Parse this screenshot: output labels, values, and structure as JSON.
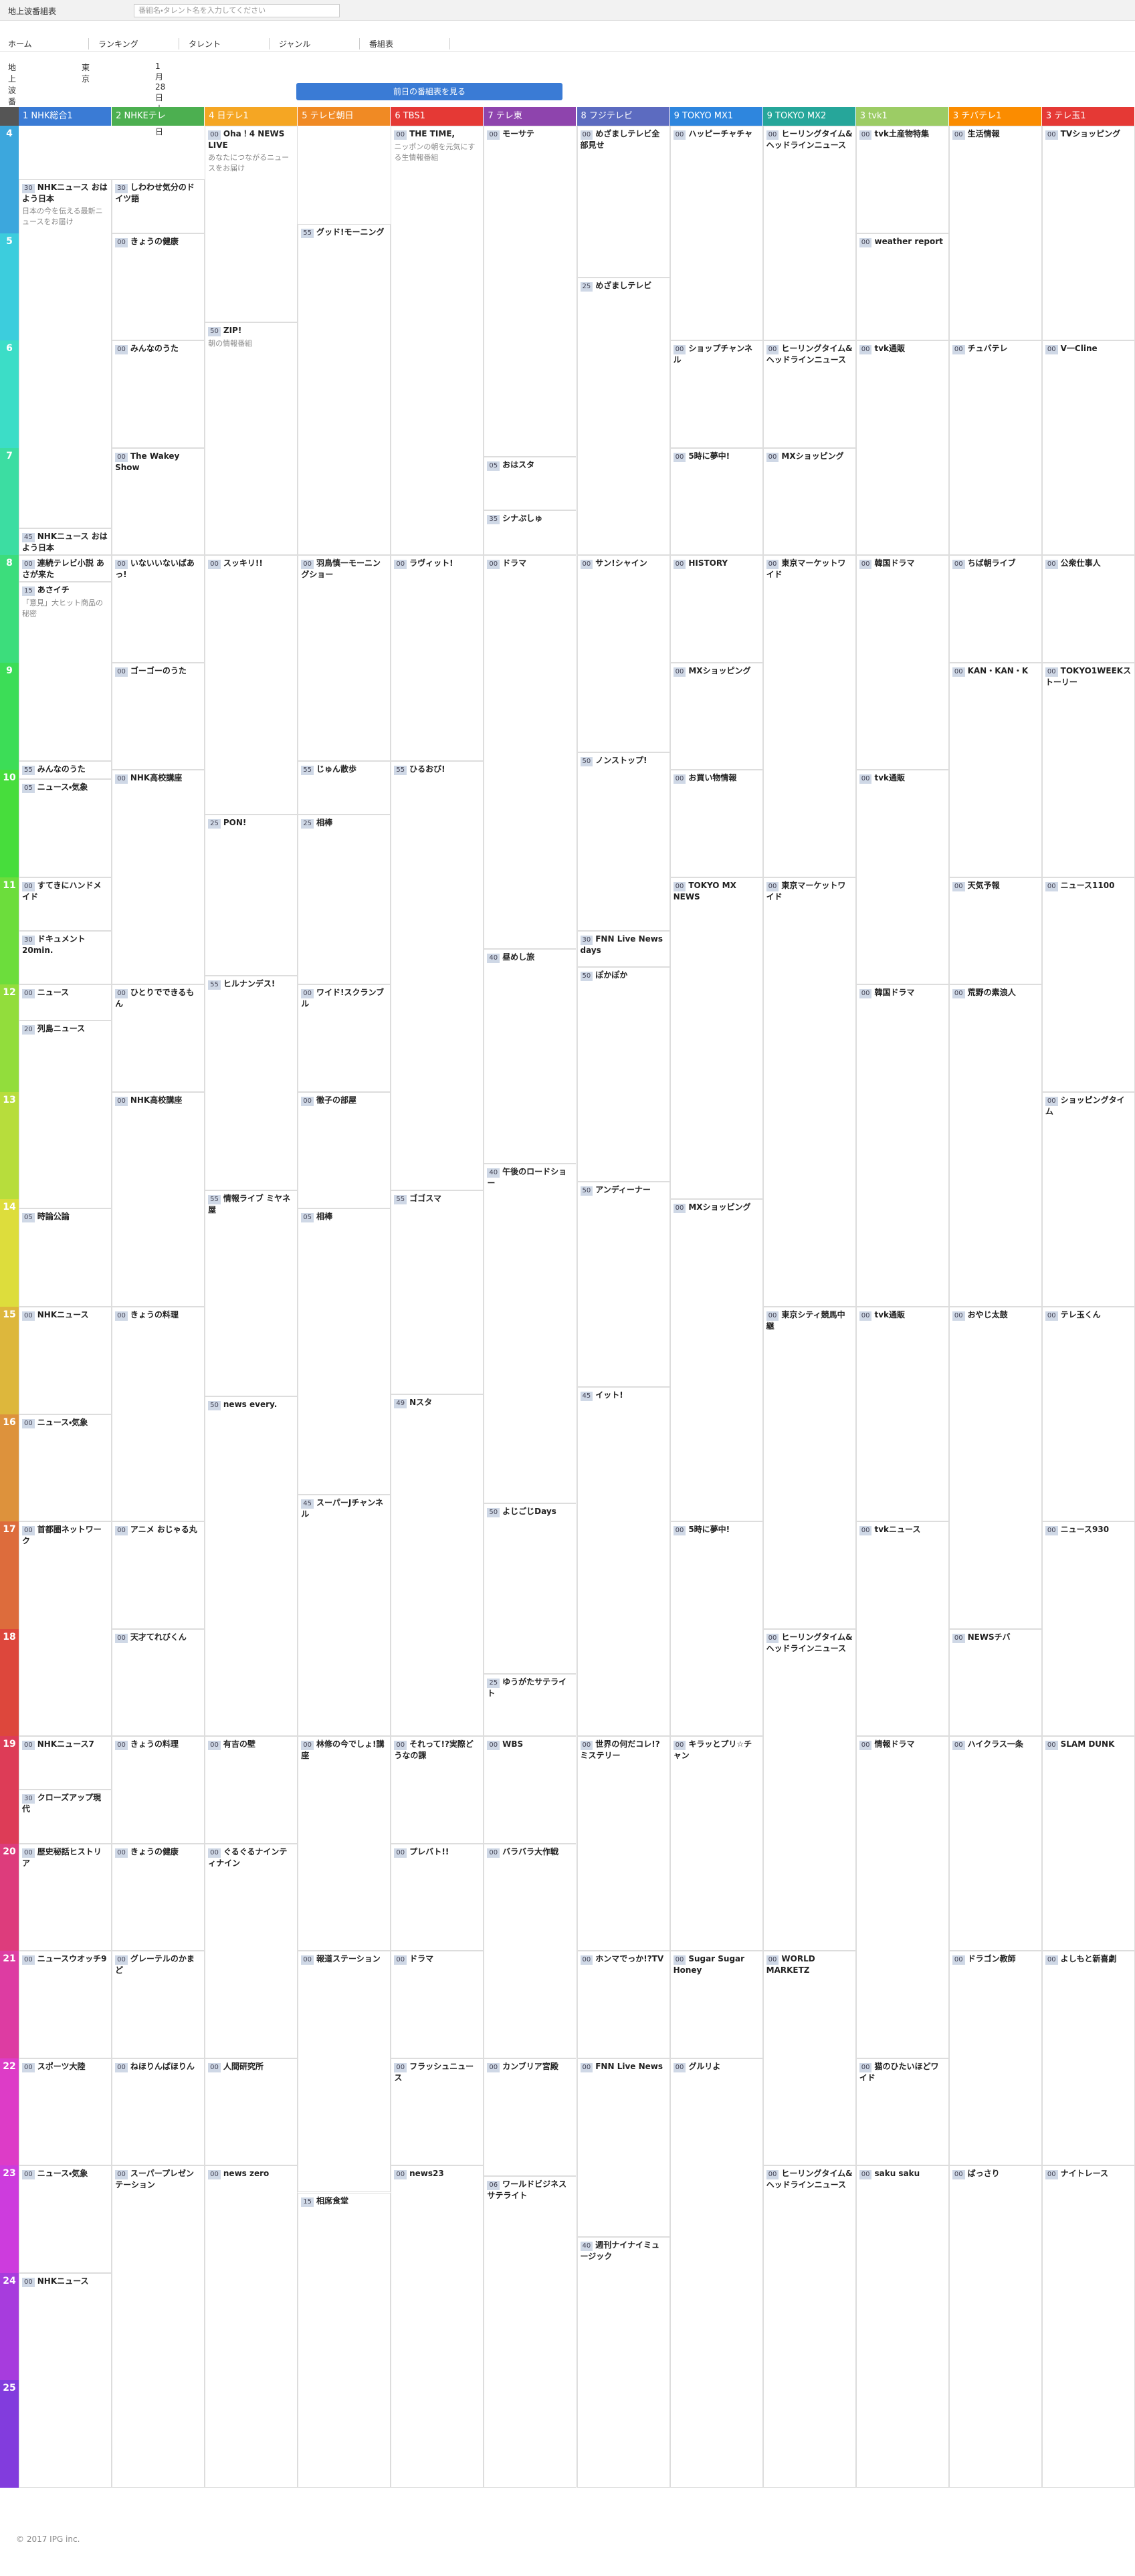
{
  "header": {
    "logo": "地上波番組表",
    "search_placeholder": "番組名・タレント名を入力してください"
  },
  "nav": [
    "ホーム",
    "ランキング",
    "タレント",
    "ジャンル",
    "番組表"
  ],
  "filters": [
    "地上波番組表",
    "東京",
    "1月28日木曜日"
  ],
  "prev_button": "前日の番組表を見る",
  "hours": [
    4,
    5,
    6,
    7,
    8,
    9,
    10,
    11,
    12,
    13,
    14,
    15,
    16,
    17,
    18,
    19,
    20,
    21,
    22,
    23,
    24,
    25
  ],
  "channels": [
    {
      "name": "1 NHK総合1",
      "color": "#3a7bd5",
      "programs": [
        {
          "hour": 4,
          "minute": "30",
          "title": "NHKニュース おはよう日本",
          "desc": "日本の今を伝える最新ニュースをお届け"
        },
        {
          "hour": 7,
          "minute": "45",
          "title": "NHKニュース おはよう日本"
        },
        {
          "hour": 8,
          "minute": "00",
          "title": "連続テレビ小説 あさが来た"
        },
        {
          "hour": 8,
          "minute": "15",
          "title": "あさイチ",
          "desc": "「意見」大ヒット商品の秘密"
        },
        {
          "hour": 9,
          "minute": "55",
          "title": "みんなのうた"
        },
        {
          "hour": 10,
          "minute": "05",
          "title": "ニュース・気象"
        },
        {
          "hour": 11,
          "minute": "00",
          "title": "すてきにハンドメイド"
        },
        {
          "hour": 11,
          "minute": "30",
          "title": "ドキュメント20min."
        },
        {
          "hour": 12,
          "minute": "00",
          "title": "ニュース"
        },
        {
          "hour": 12,
          "minute": "20",
          "title": "列島ニュース"
        },
        {
          "hour": 14,
          "minute": "05",
          "title": "時論公論"
        },
        {
          "hour": 15,
          "minute": "00",
          "title": "NHKニュース"
        },
        {
          "hour": 16,
          "minute": "00",
          "title": "ニュース・気象"
        },
        {
          "hour": 17,
          "minute": "00",
          "title": "首都圏ネットワーク"
        },
        {
          "hour": 19,
          "minute": "00",
          "title": "NHKニュース7"
        },
        {
          "hour": 19,
          "minute": "30",
          "title": "クローズアップ現代"
        },
        {
          "hour": 20,
          "minute": "00",
          "title": "歴史秘話ヒストリア"
        },
        {
          "hour": 21,
          "minute": "00",
          "title": "ニュースウオッチ9"
        },
        {
          "hour": 22,
          "minute": "00",
          "title": "スポーツ大陸"
        },
        {
          "hour": 23,
          "minute": "00",
          "title": "ニュース・気象"
        },
        {
          "hour": 24,
          "minute": "00",
          "title": "NHKニュース"
        }
      ]
    },
    {
      "name": "2 NHKEテレ",
      "color": "#4caf50",
      "programs": [
        {
          "hour": 4,
          "minute": "30",
          "title": "しわわせ気分のドイツ語"
        },
        {
          "hour": 5,
          "minute": "00",
          "title": "きょうの健康"
        },
        {
          "hour": 6,
          "minute": "00",
          "title": "みんなのうた"
        },
        {
          "hour": 7,
          "minute": "00",
          "title": "The Wakey Show"
        },
        {
          "hour": 8,
          "minute": "00",
          "title": "いないいないばあっ!"
        },
        {
          "hour": 9,
          "minute": "00",
          "title": "ゴーゴーのうた"
        },
        {
          "hour": 10,
          "minute": "00",
          "title": "NHK高校講座"
        },
        {
          "hour": 12,
          "minute": "00",
          "title": "ひとりでできるもん"
        },
        {
          "hour": 13,
          "minute": "00",
          "title": "NHK高校講座"
        },
        {
          "hour": 15,
          "minute": "00",
          "title": "きょうの料理"
        },
        {
          "hour": 17,
          "minute": "00",
          "title": "アニメ おじゃる丸"
        },
        {
          "hour": 18,
          "minute": "00",
          "title": "天才てれびくん"
        },
        {
          "hour": 19,
          "minute": "00",
          "title": "きょうの料理"
        },
        {
          "hour": 20,
          "minute": "00",
          "title": "きょうの健康"
        },
        {
          "hour": 21,
          "minute": "00",
          "title": "グレーテルのかまど"
        },
        {
          "hour": 22,
          "minute": "00",
          "title": "ねほりんぱほりん"
        },
        {
          "hour": 23,
          "minute": "00",
          "title": "スーパープレゼンテーション"
        }
      ]
    },
    {
      "name": "4 日テレ1",
      "color": "#f5a623",
      "programs": [
        {
          "hour": 4,
          "minute": "00",
          "title": "Oha！4 NEWS LIVE",
          "desc": "あなたにつながるニュースをお届け"
        },
        {
          "hour": 5,
          "minute": "50",
          "title": "ZIP!",
          "desc": "朝の情報番組"
        },
        {
          "hour": 8,
          "minute": "00",
          "title": "スッキリ!!"
        },
        {
          "hour": 10,
          "minute": "25",
          "title": "PON!"
        },
        {
          "hour": 11,
          "minute": "55",
          "title": "ヒルナンデス!"
        },
        {
          "hour": 13,
          "minute": "55",
          "title": "情報ライブ ミヤネ屋"
        },
        {
          "hour": 15,
          "minute": "50",
          "title": "news every."
        },
        {
          "hour": 19,
          "minute": "00",
          "title": "有吉の壁"
        },
        {
          "hour": 20,
          "minute": "00",
          "title": "ぐるぐるナインティナイン"
        },
        {
          "hour": 22,
          "minute": "00",
          "title": "人間研究所"
        },
        {
          "hour": 23,
          "minute": "00",
          "title": "news zero"
        }
      ]
    },
    {
      "name": "5 テレビ朝日",
      "color": "#f08a24",
      "programs": [
        {
          "hour": 4,
          "minute": "55",
          "title": "グッド!モーニング"
        },
        {
          "hour": 8,
          "minute": "00",
          "title": "羽鳥慎一モーニングショー"
        },
        {
          "hour": 9,
          "minute": "55",
          "title": "じゅん散歩"
        },
        {
          "hour": 10,
          "minute": "25",
          "title": "相棒"
        },
        {
          "hour": 12,
          "minute": "00",
          "title": "ワイド!スクランブル"
        },
        {
          "hour": 13,
          "minute": "00",
          "title": "徹子の部屋"
        },
        {
          "hour": 14,
          "minute": "05",
          "title": "相棒"
        },
        {
          "hour": 16,
          "minute": "45",
          "title": "スーパーJチャンネル"
        },
        {
          "hour": 19,
          "minute": "00",
          "title": "林修の今でしょ!講座"
        },
        {
          "hour": 21,
          "minute": "00",
          "title": "報道ステーション"
        },
        {
          "hour": 23,
          "minute": "15",
          "title": "相席食堂"
        }
      ]
    },
    {
      "name": "6 TBS1",
      "color": "#e53935",
      "programs": [
        {
          "hour": 4,
          "minute": "00",
          "title": "THE TIME,",
          "desc": "ニッポンの朝を元気にする生情報番組"
        },
        {
          "hour": 8,
          "minute": "00",
          "title": "ラヴィット!"
        },
        {
          "hour": 9,
          "minute": "55",
          "title": "ひるおび!"
        },
        {
          "hour": 13,
          "minute": "55",
          "title": "ゴゴスマ"
        },
        {
          "hour": 15,
          "minute": "49",
          "title": "Nスタ"
        },
        {
          "hour": 19,
          "minute": "00",
          "title": "それって!?実際どうなの課"
        },
        {
          "hour": 20,
          "minute": "00",
          "title": "プレバト!!"
        },
        {
          "hour": 21,
          "minute": "00",
          "title": "ドラマ"
        },
        {
          "hour": 22,
          "minute": "00",
          "title": "フラッシュニュース"
        },
        {
          "hour": 23,
          "minute": "00",
          "title": "news23"
        }
      ]
    },
    {
      "name": "7 テレ東",
      "color": "#8e44ad",
      "programs": [
        {
          "hour": 4,
          "minute": "00",
          "title": "モーサテ"
        },
        {
          "hour": 7,
          "minute": "05",
          "title": "おはスタ"
        },
        {
          "hour": 7,
          "minute": "35",
          "title": "シナぷしゅ"
        },
        {
          "hour": 8,
          "minute": "00",
          "title": "ドラマ"
        },
        {
          "hour": 11,
          "minute": "40",
          "title": "昼めし旅"
        },
        {
          "hour": 13,
          "minute": "40",
          "title": "午後のロードショー"
        },
        {
          "hour": 16,
          "minute": "50",
          "title": "よじごじDays"
        },
        {
          "hour": 18,
          "minute": "25",
          "title": "ゆうがたサテライト"
        },
        {
          "hour": 19,
          "minute": "00",
          "title": "WBS"
        },
        {
          "hour": 20,
          "minute": "00",
          "title": "バラバラ大作戦"
        },
        {
          "hour": 22,
          "minute": "00",
          "title": "カンブリア宮殿"
        },
        {
          "hour": 23,
          "minute": "06",
          "title": "ワールドビジネスサテライト"
        }
      ]
    },
    {
      "name": "8 フジテレビ",
      "color": "#5c6bc0",
      "programs": [
        {
          "hour": 4,
          "minute": "00",
          "title": "めざましテレビ全部見せ"
        },
        {
          "hour": 5,
          "minute": "25",
          "title": "めざましテレビ"
        },
        {
          "hour": 8,
          "minute": "00",
          "title": "サン!シャイン"
        },
        {
          "hour": 9,
          "minute": "50",
          "title": "ノンストップ!"
        },
        {
          "hour": 11,
          "minute": "30",
          "title": "FNN Live News days"
        },
        {
          "hour": 11,
          "minute": "50",
          "title": "ぽかぽか"
        },
        {
          "hour": 13,
          "minute": "50",
          "title": "アンディーナー"
        },
        {
          "hour": 15,
          "minute": "45",
          "title": "イット!"
        },
        {
          "hour": 19,
          "minute": "00",
          "title": "世界の何だコレ!?ミステリー"
        },
        {
          "hour": 21,
          "minute": "00",
          "title": "ホンマでっか!?TV"
        },
        {
          "hour": 22,
          "minute": "00",
          "title": "FNN Live News"
        },
        {
          "hour": 23,
          "minute": "40",
          "title": "週刊ナイナイミュージック"
        }
      ]
    },
    {
      "name": "9 TOKYO MX1",
      "color": "#2e86de",
      "programs": [
        {
          "hour": 4,
          "minute": "00",
          "title": "ハッピーチャチャ"
        },
        {
          "hour": 6,
          "minute": "00",
          "title": "ショップチャンネル"
        },
        {
          "hour": 7,
          "minute": "00",
          "title": "5時に夢中!"
        },
        {
          "hour": 8,
          "minute": "00",
          "title": "HISTORY"
        },
        {
          "hour": 9,
          "minute": "00",
          "title": "MXショッピング"
        },
        {
          "hour": 10,
          "minute": "00",
          "title": "お買い物情報"
        },
        {
          "hour": 11,
          "minute": "00",
          "title": "TOKYO MX NEWS"
        },
        {
          "hour": 14,
          "minute": "00",
          "title": "MXショッピング"
        },
        {
          "hour": 17,
          "minute": "00",
          "title": "5時に夢中!"
        },
        {
          "hour": 19,
          "minute": "00",
          "title": "キラッとプリ☆チャン"
        },
        {
          "hour": 21,
          "minute": "00",
          "title": "Sugar Sugar Honey"
        },
        {
          "hour": 22,
          "minute": "00",
          "title": "グルリよ"
        }
      ]
    },
    {
      "name": "9 TOKYO MX2",
      "color": "#26a69a",
      "programs": [
        {
          "hour": 4,
          "minute": "00",
          "title": "ヒーリングタイム&ヘッドラインニュース"
        },
        {
          "hour": 6,
          "minute": "00",
          "title": "ヒーリングタイム&ヘッドラインニュース"
        },
        {
          "hour": 7,
          "minute": "00",
          "title": "MXショッピング"
        },
        {
          "hour": 8,
          "minute": "00",
          "title": "東京マーケットワイド"
        },
        {
          "hour": 11,
          "minute": "00",
          "title": "東京マーケットワイド"
        },
        {
          "hour": 15,
          "minute": "00",
          "title": "東京シティ競馬中継"
        },
        {
          "hour": 18,
          "minute": "00",
          "title": "ヒーリングタイム&ヘッドラインニュース"
        },
        {
          "hour": 21,
          "minute": "00",
          "title": "WORLD MARKETZ"
        },
        {
          "hour": 23,
          "minute": "00",
          "title": "ヒーリングタイム&ヘッドラインニュース"
        }
      ]
    },
    {
      "name": "3 tvk1",
      "color": "#9ccc65",
      "programs": [
        {
          "hour": 4,
          "minute": "00",
          "title": "tvk土産物特集"
        },
        {
          "hour": 5,
          "minute": "00",
          "title": "weather report"
        },
        {
          "hour": 6,
          "minute": "00",
          "title": "tvk通販"
        },
        {
          "hour": 8,
          "minute": "00",
          "title": "韓国ドラマ"
        },
        {
          "hour": 10,
          "minute": "00",
          "title": "tvk通販"
        },
        {
          "hour": 12,
          "minute": "00",
          "title": "韓国ドラマ"
        },
        {
          "hour": 15,
          "minute": "00",
          "title": "tvk通販"
        },
        {
          "hour": 17,
          "minute": "00",
          "title": "tvkニュース"
        },
        {
          "hour": 19,
          "minute": "00",
          "title": "情報ドラマ"
        },
        {
          "hour": 22,
          "minute": "00",
          "title": "猫のひたいほどワイド"
        },
        {
          "hour": 23,
          "minute": "00",
          "title": "saku saku"
        }
      ]
    },
    {
      "name": "3 チバテレ1",
      "color": "#fb8c00",
      "programs": [
        {
          "hour": 4,
          "minute": "00",
          "title": "生活情報"
        },
        {
          "hour": 6,
          "minute": "00",
          "title": "チュバテレ"
        },
        {
          "hour": 8,
          "minute": "00",
          "title": "ちば朝ライブ"
        },
        {
          "hour": 9,
          "minute": "00",
          "title": "KAN・KAN・K"
        },
        {
          "hour": 11,
          "minute": "00",
          "title": "天気予報"
        },
        {
          "hour": 12,
          "minute": "00",
          "title": "荒野の素浪人"
        },
        {
          "hour": 15,
          "minute": "00",
          "title": "おやじ太鼓"
        },
        {
          "hour": 18,
          "minute": "00",
          "title": "NEWSチバ"
        },
        {
          "hour": 19,
          "minute": "00",
          "title": "ハイクラス一条"
        },
        {
          "hour": 21,
          "minute": "00",
          "title": "ドラゴン教師"
        },
        {
          "hour": 23,
          "minute": "00",
          "title": "ばっさり"
        }
      ]
    },
    {
      "name": "3 テレ玉1",
      "color": "#e53935",
      "programs": [
        {
          "hour": 4,
          "minute": "00",
          "title": "TVショッピング"
        },
        {
          "hour": 6,
          "minute": "00",
          "title": "V一Cline"
        },
        {
          "hour": 8,
          "minute": "00",
          "title": "公衆仕事人"
        },
        {
          "hour": 9,
          "minute": "00",
          "title": "TOKYO1WEEKストーリー"
        },
        {
          "hour": 11,
          "minute": "00",
          "title": "ニュース1100"
        },
        {
          "hour": 13,
          "minute": "00",
          "title": "ショッピングタイム"
        },
        {
          "hour": 15,
          "minute": "00",
          "title": "テレ玉くん"
        },
        {
          "hour": 17,
          "minute": "00",
          "title": "ニュース930"
        },
        {
          "hour": 19,
          "minute": "00",
          "title": "SLAM DUNK"
        },
        {
          "hour": 21,
          "minute": "00",
          "title": "よしもと新喜劇"
        },
        {
          "hour": 23,
          "minute": "00",
          "title": "ナイトレース"
        }
      ]
    }
  ],
  "footer": "© 2017 IPG inc."
}
